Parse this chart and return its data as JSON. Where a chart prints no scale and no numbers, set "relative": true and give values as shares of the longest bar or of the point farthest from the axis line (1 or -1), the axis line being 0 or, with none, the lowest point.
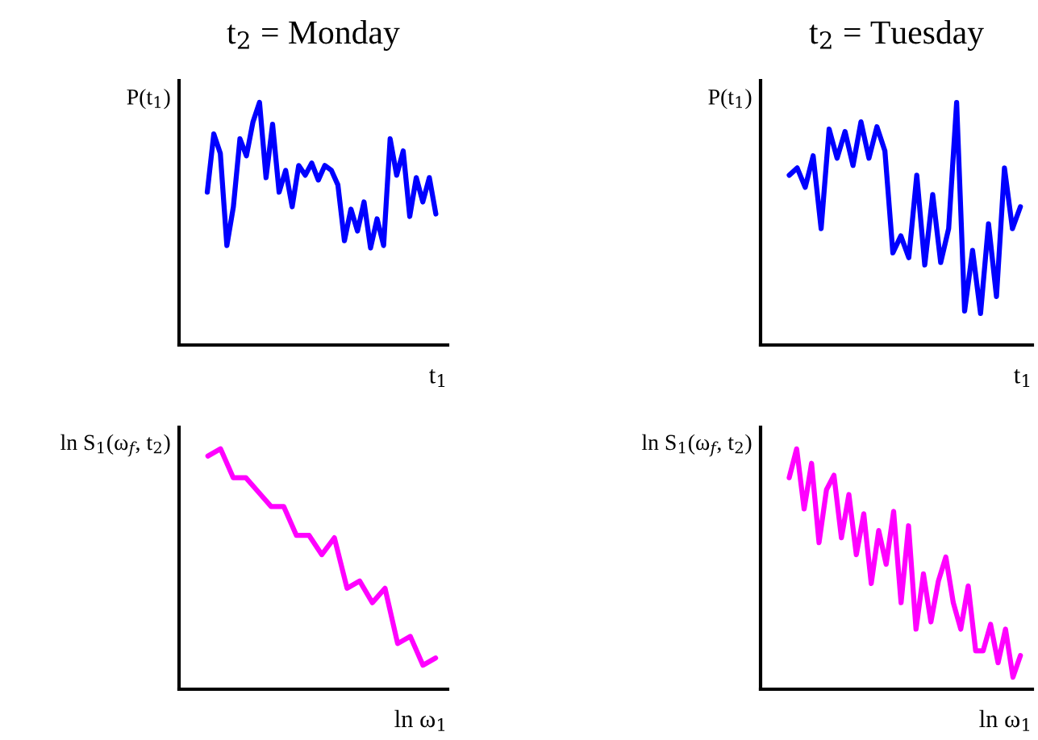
{
  "chart_data": [
    {
      "type": "line",
      "title": "t$_{2}$ = Monday",
      "ylabel": "P(t$_{1}$)",
      "xlabel": "t$_{1}$",
      "relative": true,
      "grid": false,
      "legend": false,
      "categories": [
        null,
        null,
        null,
        null,
        null,
        null,
        null,
        null,
        null,
        null,
        null,
        null,
        null,
        null,
        null,
        null,
        null,
        null,
        null,
        null,
        null,
        null,
        null,
        null,
        null,
        null,
        null,
        null,
        null,
        null,
        null,
        null,
        null,
        null,
        null,
        null
      ],
      "series": [
        {
          "color": "#0000ff",
          "values": [
            0.63,
            0.87,
            0.79,
            0.41,
            0.57,
            0.85,
            0.78,
            0.92,
            1.0,
            0.69,
            0.91,
            0.63,
            0.72,
            0.57,
            0.74,
            0.7,
            0.75,
            0.68,
            0.74,
            0.72,
            0.66,
            0.43,
            0.56,
            0.47,
            0.59,
            0.4,
            0.52,
            0.41,
            0.85,
            0.7,
            0.8,
            0.53,
            0.69,
            0.59,
            0.69,
            0.54
          ]
        }
      ]
    },
    {
      "type": "line",
      "title": "t$_{2}$ = Tuesday",
      "ylabel": "P(t$_{1}$)",
      "xlabel": "t$_{1}$",
      "relative": true,
      "grid": false,
      "legend": false,
      "categories": [
        null,
        null,
        null,
        null,
        null,
        null,
        null,
        null,
        null,
        null,
        null,
        null,
        null,
        null,
        null,
        null,
        null,
        null,
        null,
        null,
        null,
        null,
        null,
        null,
        null,
        null,
        null,
        null,
        null,
        null
      ],
      "series": [
        {
          "color": "#0000ff",
          "values": [
            0.7,
            0.73,
            0.65,
            0.78,
            0.48,
            0.89,
            0.77,
            0.88,
            0.74,
            0.92,
            0.77,
            0.9,
            0.8,
            0.38,
            0.45,
            0.36,
            0.7,
            0.33,
            0.62,
            0.34,
            0.48,
            1.0,
            0.14,
            0.39,
            0.13,
            0.5,
            0.2,
            0.73,
            0.48,
            0.57
          ]
        }
      ]
    },
    {
      "type": "line",
      "ylabel": "ln S$_{1}$(ω$_{f}$, t$_{2}$)",
      "xlabel": "ln ω$_{1}$",
      "relative": true,
      "grid": false,
      "legend": false,
      "categories": [
        null,
        null,
        null,
        null,
        null,
        null,
        null,
        null,
        null,
        null,
        null,
        null,
        null,
        null,
        null,
        null,
        null,
        null,
        null
      ],
      "series": [
        {
          "color": "#ff00ff",
          "values": [
            0.97,
            1.0,
            0.88,
            0.88,
            0.82,
            0.76,
            0.76,
            0.64,
            0.64,
            0.56,
            0.63,
            0.42,
            0.45,
            0.36,
            0.42,
            0.19,
            0.22,
            0.1,
            0.13
          ]
        }
      ]
    },
    {
      "type": "line",
      "ylabel": "ln S$_{1}$(ω$_{f}$, t$_{2}$)",
      "xlabel": "ln ω$_{1}$",
      "relative": true,
      "grid": false,
      "legend": false,
      "categories": [
        null,
        null,
        null,
        null,
        null,
        null,
        null,
        null,
        null,
        null,
        null,
        null,
        null,
        null,
        null,
        null,
        null,
        null,
        null,
        null,
        null,
        null,
        null,
        null,
        null,
        null,
        null,
        null,
        null,
        null,
        null,
        null
      ],
      "series": [
        {
          "color": "#ff00ff",
          "values": [
            0.88,
            1.0,
            0.75,
            0.94,
            0.61,
            0.83,
            0.89,
            0.63,
            0.81,
            0.56,
            0.73,
            0.44,
            0.66,
            0.52,
            0.74,
            0.36,
            0.68,
            0.25,
            0.48,
            0.28,
            0.45,
            0.55,
            0.36,
            0.25,
            0.43,
            0.16,
            0.16,
            0.27,
            0.11,
            0.25,
            0.05,
            0.14
          ]
        }
      ]
    }
  ]
}
